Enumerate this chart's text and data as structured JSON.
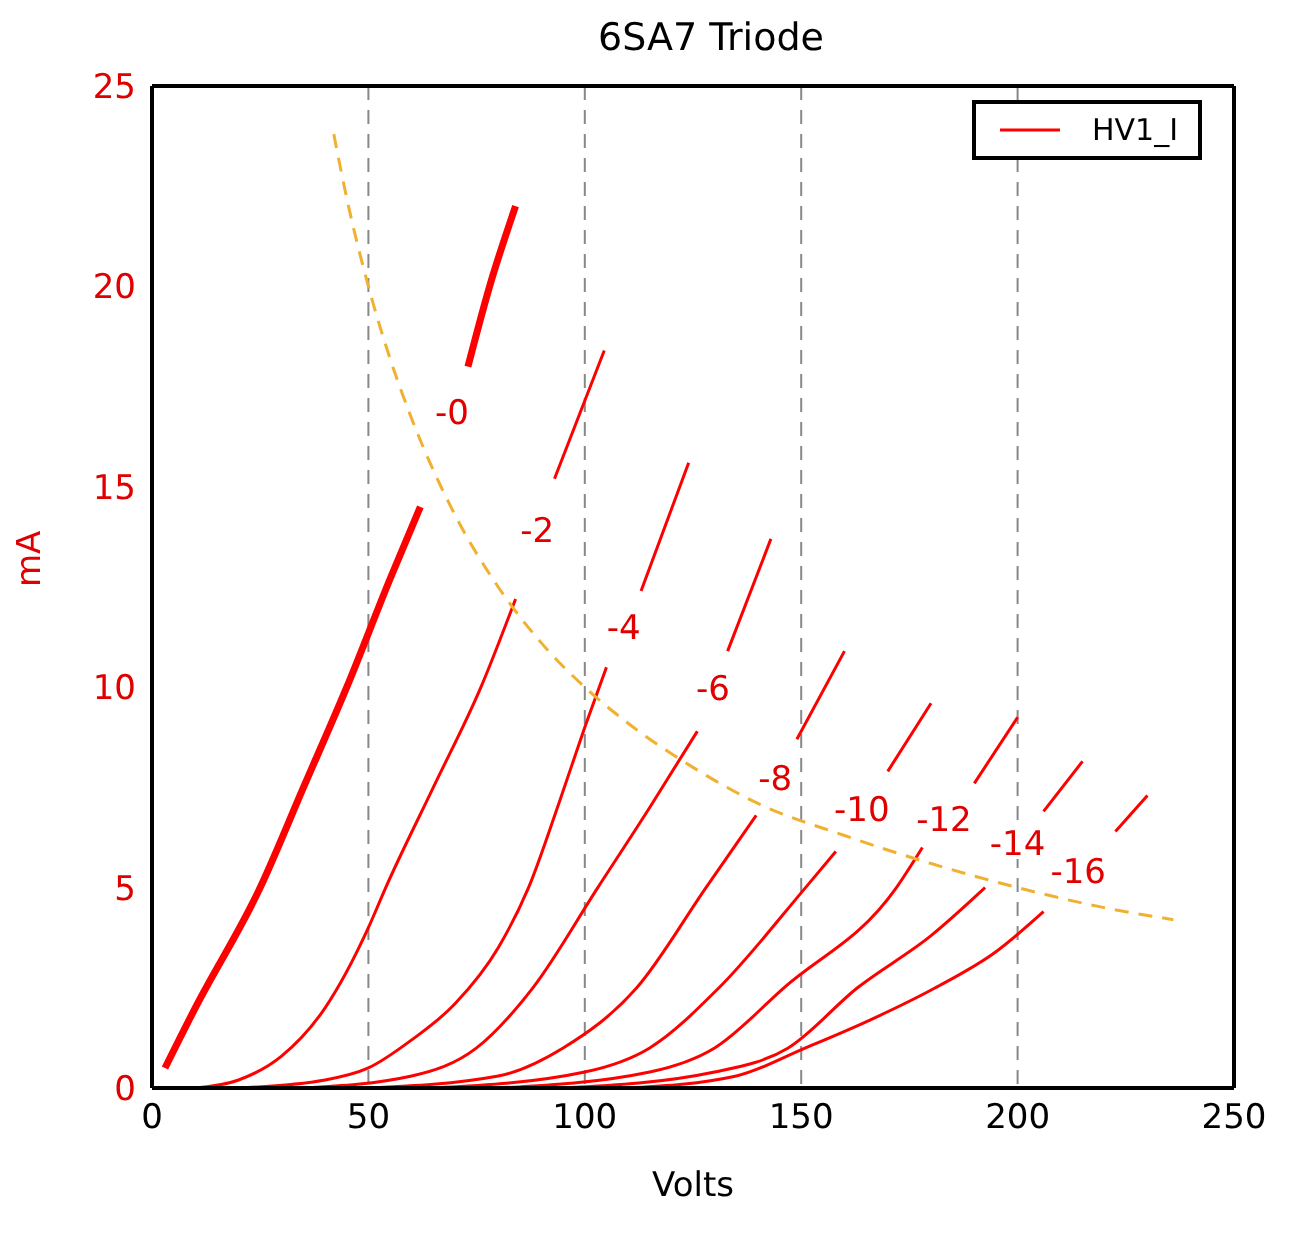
{
  "chart_data": {
    "type": "line",
    "title": "6SA7 Triode",
    "xlabel": "Volts",
    "ylabel": "mA",
    "xlim": [
      0,
      250
    ],
    "xticks": [
      0,
      50,
      100,
      150,
      200,
      250
    ],
    "ylim": [
      0,
      25
    ],
    "yticks": [
      0,
      5,
      10,
      15,
      20,
      25
    ],
    "grid": true,
    "legend": "top right",
    "marker": "none",
    "line_style": "solid",
    "series": [
      {
        "name": "HV1_I",
        "color": "#ff0000",
        "x": [
          3,
          10,
          25,
          35,
          45,
          55,
          62,
          69.3,
          73,
          78,
          84
        ],
        "values": [
          0.5,
          2,
          5,
          7.5,
          10,
          12.7,
          14.5,
          null,
          18,
          20,
          22
        ]
      },
      {
        "color": "#ff0000",
        "x": [
          10,
          20,
          30,
          40,
          50,
          54,
          65,
          76,
          84,
          89,
          93,
          104.5
        ],
        "values": [
          0,
          0.2,
          0.8,
          2,
          4,
          5,
          7.5,
          10,
          12.2,
          null,
          15.2,
          18.4
        ]
      },
      {
        "color": "#ff0000",
        "x": [
          20,
          40,
          50,
          60,
          70,
          80,
          87,
          94,
          100,
          105,
          109,
          113,
          124
        ],
        "values": [
          0,
          0.2,
          0.5,
          1.2,
          2.1,
          3.5,
          5,
          7.1,
          9,
          10.5,
          null,
          12.4,
          15.6
        ]
      },
      {
        "color": "#ff0000",
        "x": [
          35,
          60,
          75,
          88,
          103,
          115,
          126,
          129.6,
          133,
          143
        ],
        "values": [
          0,
          0.3,
          1,
          2.5,
          5,
          7,
          8.9,
          null,
          10.9,
          13.7
        ]
      },
      {
        "color": "#ff0000",
        "x": [
          50,
          80,
          95,
          112,
          128,
          139.6,
          144,
          149,
          160
        ],
        "values": [
          0,
          0.3,
          1,
          2.5,
          5,
          6.8,
          null,
          8.7,
          10.9
        ]
      },
      {
        "color": "#ff0000",
        "x": [
          65,
          100,
          115,
          131,
          151,
          158,
          164,
          170,
          180
        ],
        "values": [
          0,
          0.4,
          1,
          2.5,
          5,
          5.9,
          null,
          7.9,
          9.6
        ]
      },
      {
        "color": "#ff0000",
        "x": [
          80,
          115,
          130,
          146,
          172,
          178,
          183,
          190,
          200
        ],
        "values": [
          0,
          0.4,
          1,
          2.5,
          5,
          6,
          null,
          7.6,
          9.25
        ]
      },
      {
        "color": "#ff0000",
        "x": [
          95,
          130,
          147,
          163,
          180,
          192.5,
          200,
          206,
          215
        ],
        "values": [
          0,
          0.4,
          1,
          2.5,
          3.8,
          5,
          null,
          6.9,
          8.15
        ]
      },
      {
        "color": "#ff0000",
        "x": [
          110,
          135,
          151,
          166,
          181,
          195,
          206,
          214,
          222.6,
          230
        ],
        "values": [
          0,
          0.3,
          1,
          1.7,
          2.5,
          3.4,
          4.4,
          null,
          6.4,
          7.3
        ]
      },
      {
        "color": "#f0b030",
        "line_style": "dashed",
        "x": [
          42,
          45,
          50,
          55,
          60,
          70,
          80,
          90,
          100,
          110,
          125,
          140,
          160,
          180,
          200,
          220,
          236
        ],
        "values": [
          23.8,
          22.2,
          20,
          18.2,
          16.7,
          14.3,
          12.5,
          11.1,
          10,
          9.1,
          8,
          7.1,
          6.3,
          5.6,
          5,
          4.5,
          4.2
        ]
      }
    ],
    "annotations": [
      "-0",
      "-2",
      "-4",
      "-6",
      "-8",
      "-10",
      "-12",
      "-14",
      "-16"
    ]
  }
}
